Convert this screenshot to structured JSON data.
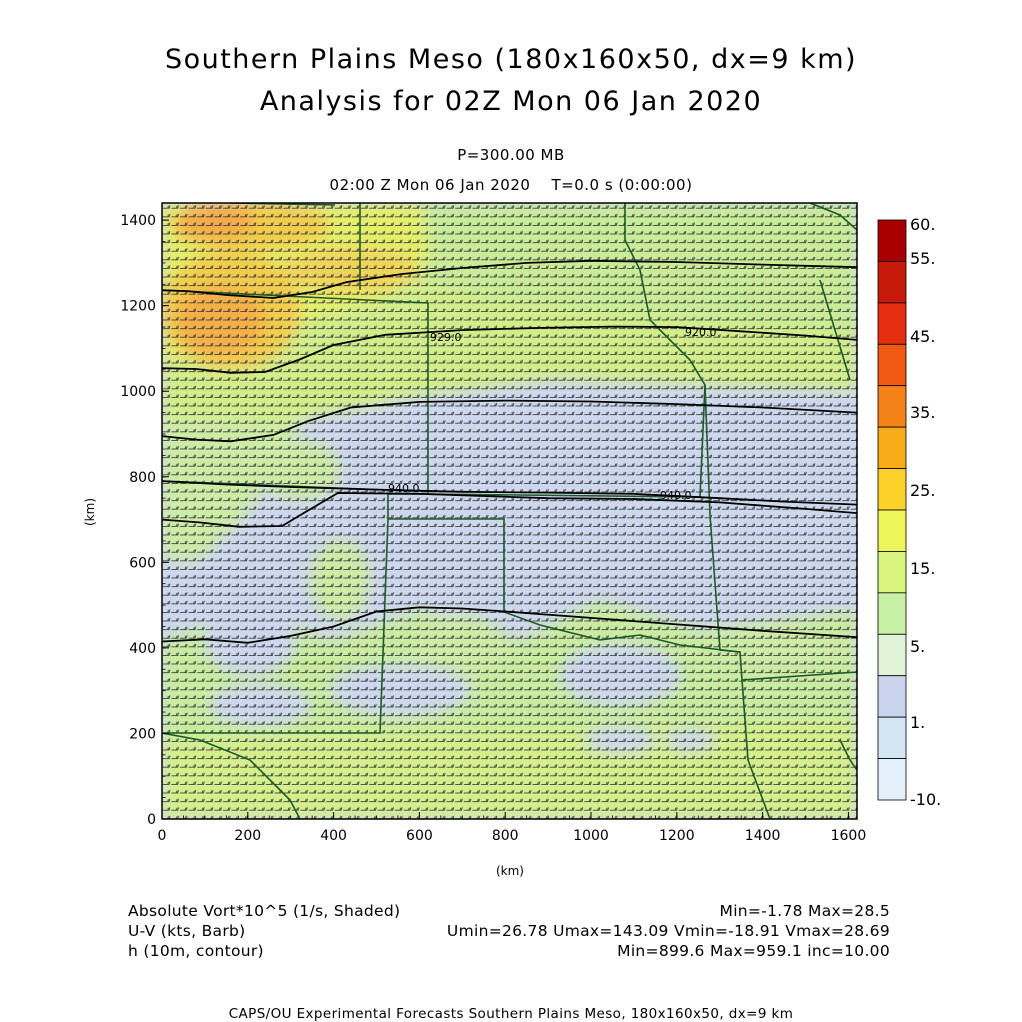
{
  "title": "Southern Plains Meso (180x160x50, dx=9 km)",
  "subtitle": "Analysis for 02Z Mon 06 Jan 2020",
  "level": "P=300.00 MB",
  "time_line": "02:00 Z Mon 06 Jan 2020    T=0.0 s (0:00:00)",
  "footer": {
    "field1_label": "Absolute Vort*10^5 (1/s, Shaded)",
    "field1_stats": "Min=-1.78 Max=28.5",
    "field2_label": "U-V (kts, Barb)",
    "field2_stats": "Umin=26.78 Umax=143.09 Vmin=-18.91 Vmax=28.69",
    "field3_label": "h (10m, contour)",
    "field3_stats": "Min=899.6 Max=959.1 inc=10.00",
    "credit": "CAPS/OU Experimental Forecasts  Southern Plains Meso, 180x160x50, dx=9 km"
  },
  "colors": {
    "low": "#cfe4f5",
    "blue": "#cdd7ef",
    "pale_green": "#ccf0c4",
    "green": "#c8ec94",
    "yellow_green": "#d9f07a",
    "yellow": "#f2f04a",
    "orange": "#f6a84a",
    "barb": "#303030",
    "border": "#1e5a28"
  },
  "chart_data": {
    "type": "heatmap",
    "xlabel": "(km)",
    "ylabel": "(km)",
    "xlim": [
      0,
      1620
    ],
    "ylim": [
      0,
      1440
    ],
    "x_ticks": [
      "0",
      "200",
      "400",
      "600",
      "800",
      "1000",
      "1200",
      "1400",
      "1600"
    ],
    "y_ticks": [
      "0",
      "200",
      "400",
      "600",
      "800",
      "1000",
      "1200",
      "1400"
    ],
    "colorbar_labels": [
      "60.",
      "55.",
      "45.",
      "35.",
      "25.",
      "15.",
      "5.",
      "1.",
      "-10."
    ],
    "colorbar_colors": [
      "#a80000",
      "#c81a0a",
      "#e62e10",
      "#f05a14",
      "#f58216",
      "#f9ac1a",
      "#fcd22a",
      "#eef55a",
      "#d8f47e",
      "#c8f0a4",
      "#dff3d7",
      "#cad4ef",
      "#d4e5f4",
      "#e4f1fa"
    ],
    "contour_labels": [
      "929.0",
      "920.0",
      "940.0",
      "940.0"
    ],
    "contours_km": [
      {
        "pts": [
          [
            0,
            1236
          ],
          [
            60,
            1234
          ],
          [
            150,
            1225
          ],
          [
            260,
            1218
          ],
          [
            350,
            1232
          ],
          [
            430,
            1255
          ],
          [
            560,
            1274
          ],
          [
            700,
            1288
          ],
          [
            850,
            1300
          ],
          [
            1000,
            1305
          ],
          [
            1200,
            1302
          ],
          [
            1400,
            1296
          ],
          [
            1620,
            1290
          ]
        ]
      },
      {
        "pts": [
          [
            0,
            1054
          ],
          [
            80,
            1052
          ],
          [
            160,
            1043
          ],
          [
            240,
            1045
          ],
          [
            320,
            1074
          ],
          [
            400,
            1108
          ],
          [
            520,
            1132
          ],
          [
            700,
            1143
          ],
          [
            880,
            1148
          ],
          [
            1050,
            1151
          ],
          [
            1200,
            1150
          ],
          [
            1350,
            1140
          ],
          [
            1500,
            1130
          ],
          [
            1620,
            1120
          ]
        ]
      },
      {
        "pts": [
          [
            0,
            895
          ],
          [
            80,
            887
          ],
          [
            160,
            883
          ],
          [
            260,
            898
          ],
          [
            340,
            930
          ],
          [
            440,
            962
          ],
          [
            600,
            975
          ],
          [
            800,
            978
          ],
          [
            1000,
            976
          ],
          [
            1200,
            970
          ],
          [
            1400,
            962
          ],
          [
            1620,
            950
          ]
        ]
      },
      {
        "pts": [
          [
            0,
            790
          ],
          [
            150,
            782
          ],
          [
            300,
            776
          ],
          [
            500,
            770
          ],
          [
            700,
            765
          ],
          [
            900,
            763
          ],
          [
            1100,
            760
          ],
          [
            1300,
            750
          ],
          [
            1450,
            742
          ],
          [
            1620,
            735
          ]
        ]
      },
      {
        "pts": [
          [
            0,
            700
          ],
          [
            90,
            693
          ],
          [
            180,
            683
          ],
          [
            280,
            685
          ],
          [
            330,
            715
          ],
          [
            410,
            762
          ],
          [
            600,
            760
          ],
          [
            900,
            750
          ],
          [
            1100,
            748
          ],
          [
            1300,
            740
          ],
          [
            1500,
            725
          ],
          [
            1620,
            715
          ]
        ]
      },
      {
        "pts": [
          [
            0,
            415
          ],
          [
            100,
            420
          ],
          [
            200,
            412
          ],
          [
            300,
            428
          ],
          [
            400,
            450
          ],
          [
            500,
            485
          ],
          [
            600,
            495
          ],
          [
            700,
            492
          ],
          [
            800,
            485
          ],
          [
            1000,
            470
          ],
          [
            1200,
            455
          ],
          [
            1400,
            440
          ],
          [
            1620,
            425
          ]
        ]
      }
    ]
  }
}
